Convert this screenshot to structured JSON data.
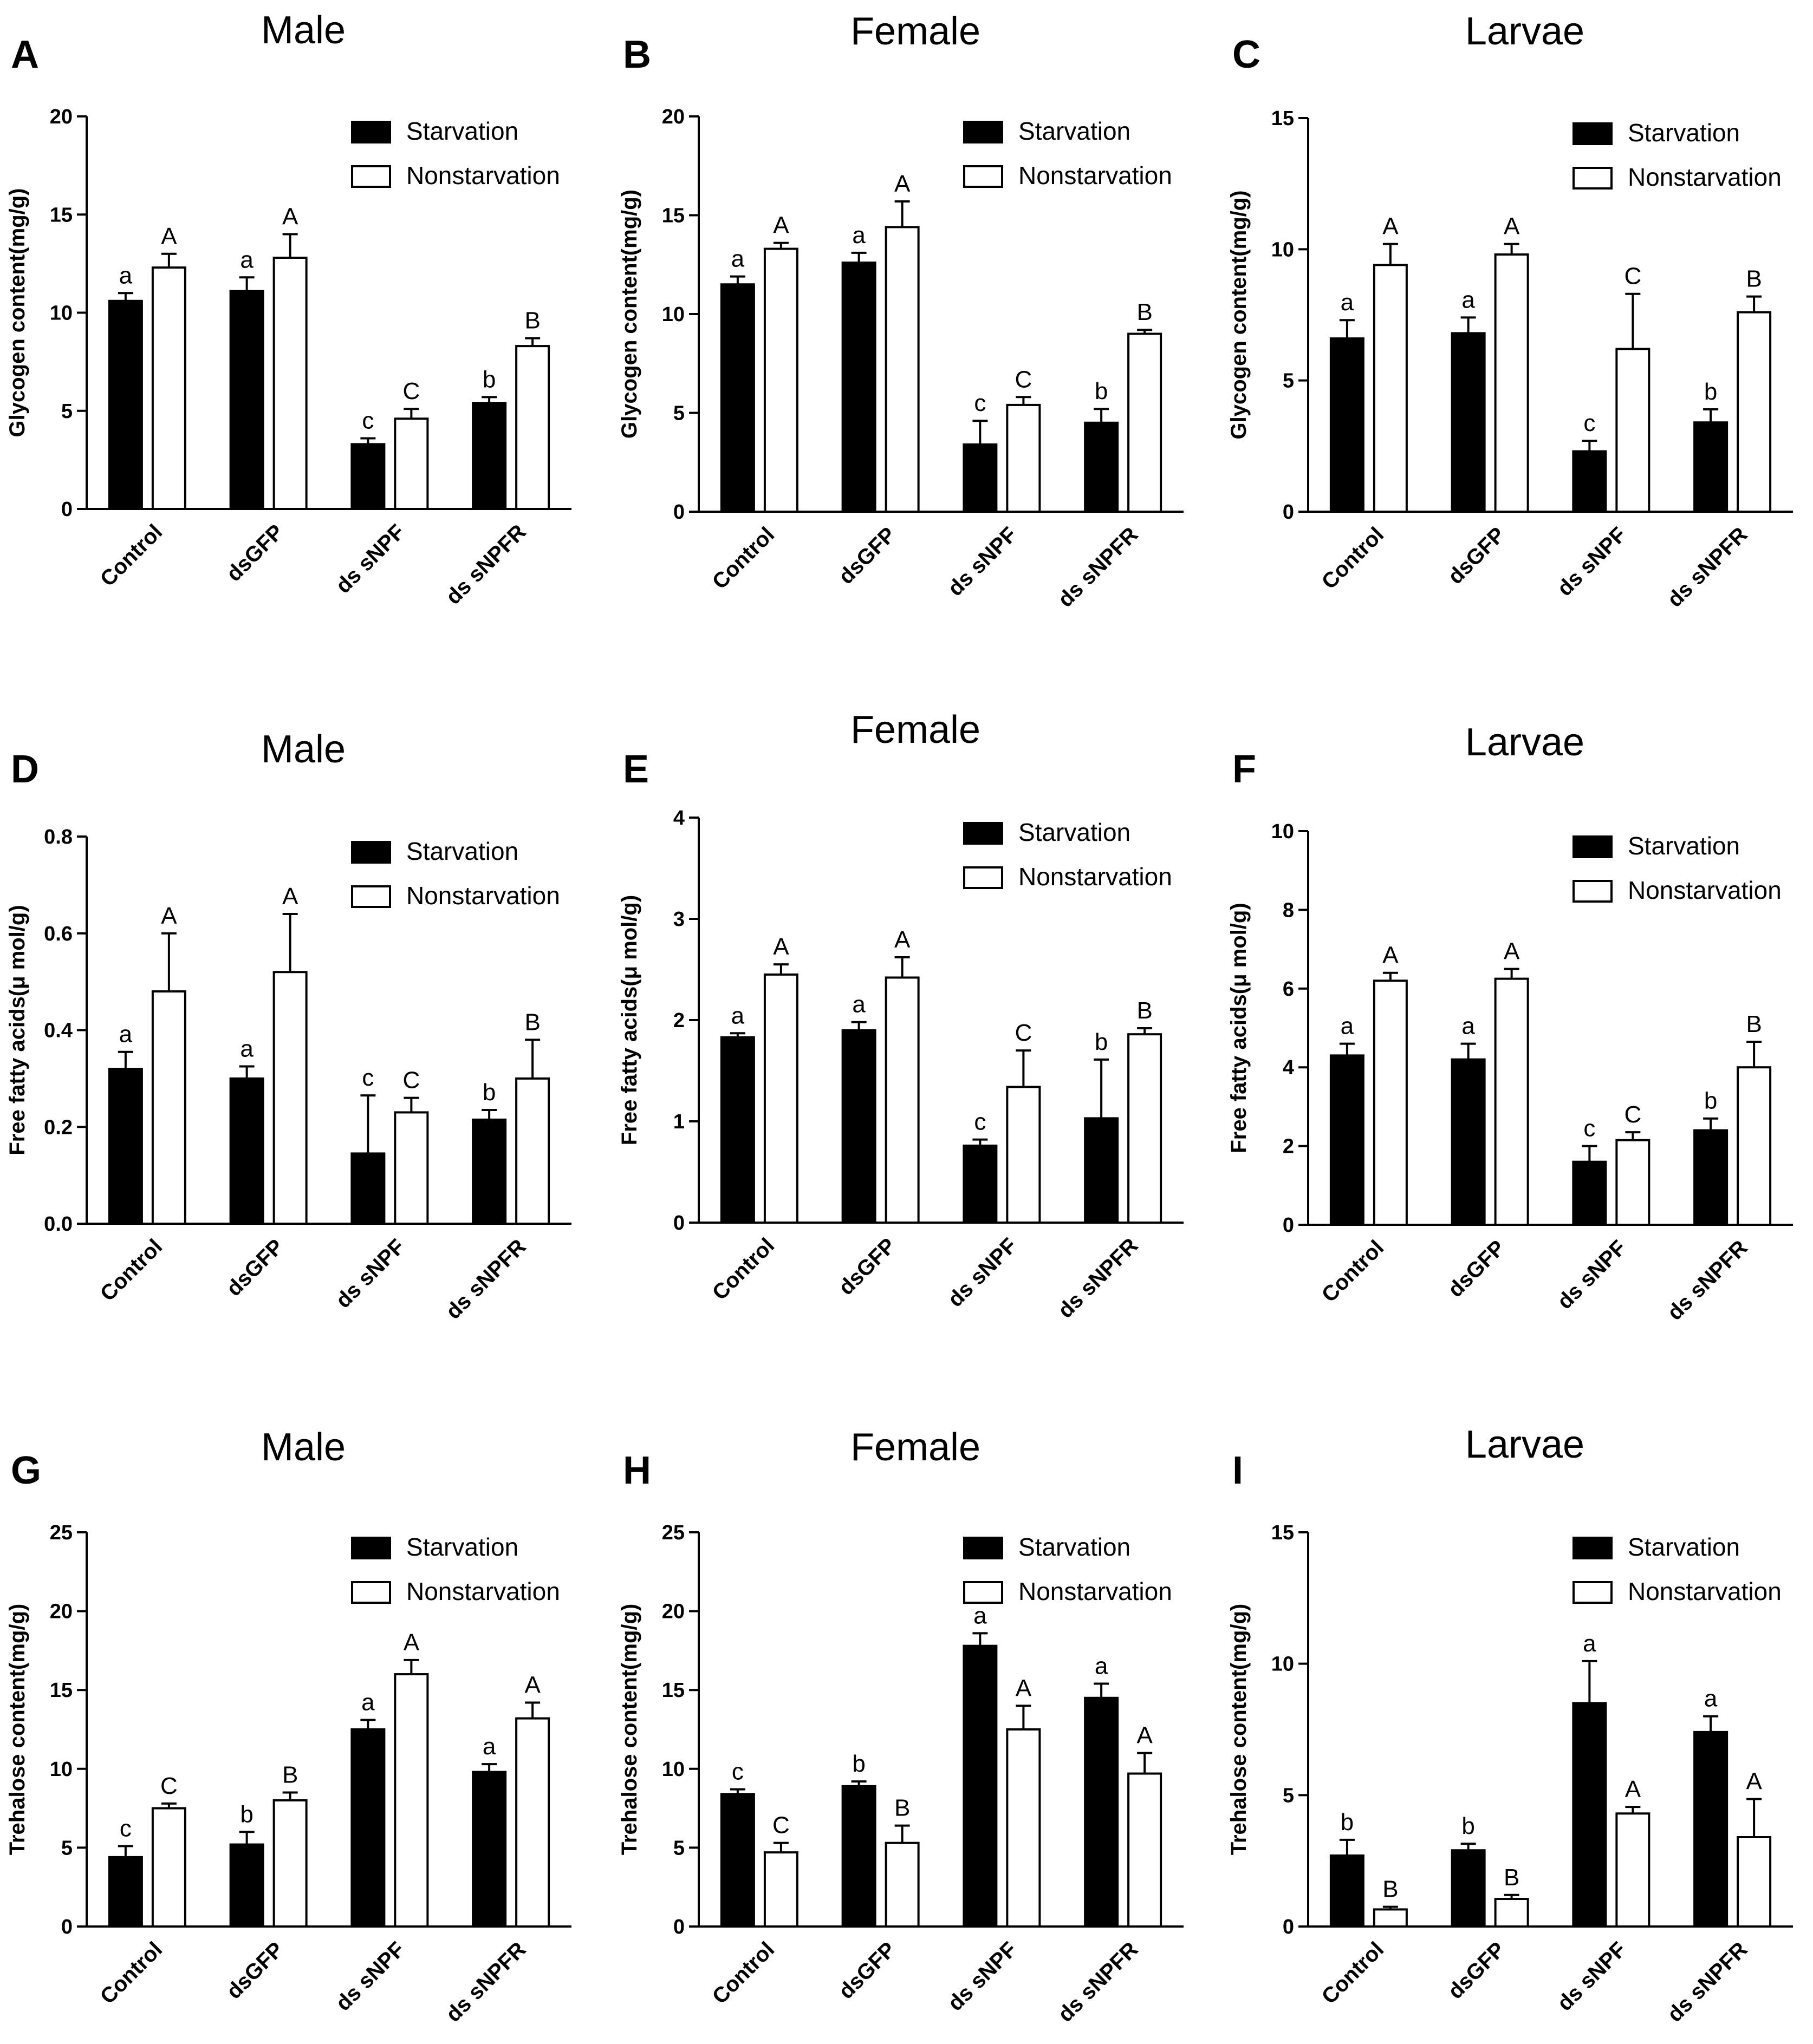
{
  "figure": {
    "categories": [
      "Control",
      "dsGFP",
      "ds sNPF",
      "ds sNPFR"
    ],
    "legend": [
      "Starvation",
      "Nonstarvation"
    ],
    "colors": {
      "starvation": "#000000",
      "nonstarvation": "#ffffff",
      "axis": "#000000"
    }
  },
  "chart_data": [
    {
      "type": "bar",
      "panel": "A",
      "title": "Male",
      "ylabel": "Glycogen content(mg/g)",
      "xlabel": "",
      "ylim": [
        0,
        20
      ],
      "yticks": [
        "0",
        "5",
        "10",
        "15",
        "20"
      ],
      "legend_position": "top-right",
      "categories": [
        "Control",
        "dsGFP",
        "ds sNPF",
        "ds sNPFR"
      ],
      "series": [
        {
          "name": "Starvation",
          "values": [
            10.6,
            11.1,
            3.3,
            5.4
          ],
          "errors": [
            0.4,
            0.7,
            0.3,
            0.3
          ],
          "letters": [
            "a",
            "a",
            "c",
            "b"
          ]
        },
        {
          "name": "Nonstarvation",
          "values": [
            12.3,
            12.8,
            4.6,
            8.3
          ],
          "errors": [
            0.7,
            1.2,
            0.5,
            0.4
          ],
          "letters": [
            "A",
            "A",
            "C",
            "B"
          ]
        }
      ]
    },
    {
      "type": "bar",
      "panel": "B",
      "title": "Female",
      "ylabel": "Glycogen content(mg/g)",
      "xlabel": "",
      "ylim": [
        0,
        20
      ],
      "yticks": [
        "0",
        "5",
        "10",
        "15",
        "20"
      ],
      "legend_position": "top-right",
      "categories": [
        "Control",
        "dsGFP",
        "ds sNPF",
        "ds sNPFR"
      ],
      "series": [
        {
          "name": "Starvation",
          "values": [
            11.5,
            12.6,
            3.4,
            4.5
          ],
          "errors": [
            0.4,
            0.5,
            1.2,
            0.7
          ],
          "letters": [
            "a",
            "a",
            "c",
            "b"
          ]
        },
        {
          "name": "Nonstarvation",
          "values": [
            13.3,
            14.4,
            5.4,
            9.0
          ],
          "errors": [
            0.3,
            1.3,
            0.4,
            0.2
          ],
          "letters": [
            "A",
            "A",
            "C",
            "B"
          ]
        }
      ]
    },
    {
      "type": "bar",
      "panel": "C",
      "title": "Larvae",
      "ylabel": "Glycogen content(mg/g)",
      "xlabel": "",
      "ylim": [
        0,
        15
      ],
      "yticks": [
        "0",
        "5",
        "10",
        "15"
      ],
      "legend_position": "top-right",
      "categories": [
        "Control",
        "dsGFP",
        "ds sNPF",
        "ds sNPFR"
      ],
      "series": [
        {
          "name": "Starvation",
          "values": [
            6.6,
            6.8,
            2.3,
            3.4
          ],
          "errors": [
            0.7,
            0.6,
            0.4,
            0.5
          ],
          "letters": [
            "a",
            "a",
            "c",
            "b"
          ]
        },
        {
          "name": "Nonstarvation",
          "values": [
            9.4,
            9.8,
            6.2,
            7.6
          ],
          "errors": [
            0.8,
            0.4,
            2.1,
            0.6
          ],
          "letters": [
            "A",
            "A",
            "C",
            "B"
          ]
        }
      ]
    },
    {
      "type": "bar",
      "panel": "D",
      "title": "Male",
      "ylabel": "Free fatty acids(μ mol/g)",
      "xlabel": "",
      "ylim": [
        0,
        0.8
      ],
      "yticks": [
        "0.0",
        "0.2",
        "0.4",
        "0.6",
        "0.8"
      ],
      "legend_position": "top-right",
      "categories": [
        "Control",
        "dsGFP",
        "ds sNPF",
        "ds sNPFR"
      ],
      "series": [
        {
          "name": "Starvation",
          "values": [
            0.32,
            0.3,
            0.145,
            0.215
          ],
          "errors": [
            0.035,
            0.025,
            0.12,
            0.02
          ],
          "letters": [
            "a",
            "a",
            "c",
            "b"
          ]
        },
        {
          "name": "Nonstarvation",
          "values": [
            0.48,
            0.52,
            0.23,
            0.3
          ],
          "errors": [
            0.12,
            0.12,
            0.03,
            0.08
          ],
          "letters": [
            "A",
            "A",
            "C",
            "B"
          ]
        }
      ]
    },
    {
      "type": "bar",
      "panel": "E",
      "title": "Female",
      "ylabel": "Free fatty acids(μ mol/g)",
      "xlabel": "",
      "ylim": [
        0,
        4
      ],
      "yticks": [
        "0",
        "1",
        "2",
        "3",
        "4"
      ],
      "legend_position": "top-right",
      "categories": [
        "Control",
        "dsGFP",
        "ds sNPF",
        "ds sNPFR"
      ],
      "series": [
        {
          "name": "Starvation",
          "values": [
            1.83,
            1.9,
            0.76,
            1.03
          ],
          "errors": [
            0.04,
            0.08,
            0.06,
            0.58
          ],
          "letters": [
            "a",
            "a",
            "c",
            "b"
          ]
        },
        {
          "name": "Nonstarvation",
          "values": [
            2.45,
            2.42,
            1.34,
            1.86
          ],
          "errors": [
            0.1,
            0.2,
            0.36,
            0.06
          ],
          "letters": [
            "A",
            "A",
            "C",
            "B"
          ]
        }
      ]
    },
    {
      "type": "bar",
      "panel": "F",
      "title": "Larvae",
      "ylabel": "Free fatty acids(μ mol/g)",
      "xlabel": "",
      "ylim": [
        0,
        10
      ],
      "yticks": [
        "0",
        "2",
        "4",
        "6",
        "8",
        "10"
      ],
      "legend_position": "top-right",
      "categories": [
        "Control",
        "dsGFP",
        "ds sNPF",
        "ds sNPFR"
      ],
      "series": [
        {
          "name": "Starvation",
          "values": [
            4.3,
            4.2,
            1.6,
            2.4
          ],
          "errors": [
            0.3,
            0.4,
            0.4,
            0.3
          ],
          "letters": [
            "a",
            "a",
            "c",
            "b"
          ]
        },
        {
          "name": "Nonstarvation",
          "values": [
            6.2,
            6.25,
            2.15,
            4.0
          ],
          "errors": [
            0.2,
            0.25,
            0.2,
            0.65
          ],
          "letters": [
            "A",
            "A",
            "C",
            "B"
          ]
        }
      ]
    },
    {
      "type": "bar",
      "panel": "G",
      "title": "Male",
      "ylabel": "Trehalose content(mg/g)",
      "xlabel": "",
      "ylim": [
        0,
        25
      ],
      "yticks": [
        "0",
        "5",
        "10",
        "15",
        "20",
        "25"
      ],
      "legend_position": "top-right",
      "categories": [
        "Control",
        "dsGFP",
        "ds sNPF",
        "ds sNPFR"
      ],
      "series": [
        {
          "name": "Starvation",
          "values": [
            4.4,
            5.2,
            12.5,
            9.8
          ],
          "errors": [
            0.7,
            0.8,
            0.6,
            0.5
          ],
          "letters": [
            "c",
            "b",
            "a",
            "a"
          ]
        },
        {
          "name": "Nonstarvation",
          "values": [
            7.5,
            8.0,
            16.0,
            13.2
          ],
          "errors": [
            0.3,
            0.5,
            0.9,
            1.0
          ],
          "letters": [
            "C",
            "B",
            "A",
            "A"
          ]
        }
      ]
    },
    {
      "type": "bar",
      "panel": "H",
      "title": "Female",
      "ylabel": "Trehalose content(mg/g)",
      "xlabel": "",
      "ylim": [
        0,
        25
      ],
      "yticks": [
        "0",
        "5",
        "10",
        "15",
        "20",
        "25"
      ],
      "legend_position": "top-right",
      "categories": [
        "Control",
        "dsGFP",
        "ds sNPF",
        "ds sNPFR"
      ],
      "series": [
        {
          "name": "Starvation",
          "values": [
            8.4,
            8.9,
            17.8,
            14.5
          ],
          "errors": [
            0.3,
            0.3,
            0.8,
            0.9
          ],
          "letters": [
            "c",
            "b",
            "a",
            "a"
          ]
        },
        {
          "name": "Nonstarvation",
          "values": [
            4.7,
            5.3,
            12.5,
            9.7
          ],
          "errors": [
            0.6,
            1.1,
            1.5,
            1.3
          ],
          "letters": [
            "C",
            "B",
            "A",
            "A"
          ]
        }
      ]
    },
    {
      "type": "bar",
      "panel": "I",
      "title": "Larvae",
      "ylabel": "Trehalose content(mg/g)",
      "xlabel": "",
      "ylim": [
        0,
        15
      ],
      "yticks": [
        "0",
        "5",
        "10",
        "15"
      ],
      "legend_position": "top-right",
      "categories": [
        "Control",
        "dsGFP",
        "ds sNPF",
        "ds sNPFR"
      ],
      "series": [
        {
          "name": "Starvation",
          "values": [
            2.7,
            2.9,
            8.5,
            7.4
          ],
          "errors": [
            0.6,
            0.25,
            1.6,
            0.6
          ],
          "letters": [
            "b",
            "b",
            "a",
            "a"
          ]
        },
        {
          "name": "Nonstarvation",
          "values": [
            0.65,
            1.05,
            4.3,
            3.4
          ],
          "errors": [
            0.1,
            0.15,
            0.25,
            1.45
          ],
          "letters": [
            "B",
            "B",
            "A",
            "A"
          ]
        }
      ]
    }
  ]
}
